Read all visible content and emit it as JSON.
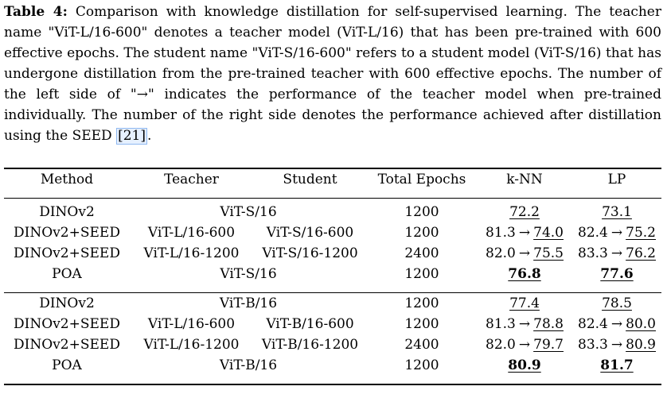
{
  "caption": {
    "label": "Table 4:",
    "text_before_cite": " Comparison with knowledge distillation for self-supervised learning. The teacher name \"ViT-L/16-600\" denotes a teacher model (ViT-L/16) that has been pre-trained with 600 effective epochs. The student name \"ViT-S/16-600\" refers to a student model (ViT-S/16) that has undergone distillation from the pre-trained teacher with 600 effective epochs. The number of the left side of \"→\" indicates the performance of the teacher model when pre-trained individually. The number of the right side denotes the performance achieved after distillation using the SEED ",
    "cite": "[21]",
    "text_after_cite": "."
  },
  "table": {
    "headers": [
      "Method",
      "Teacher",
      "Student",
      "Total Epochs",
      "k-NN",
      "LP"
    ],
    "arrow": "→",
    "group1": [
      {
        "method": "DINOv2",
        "model": "ViT-S/16",
        "epochs": "1200",
        "knn": "72.2",
        "lp": "73.1"
      },
      {
        "method": "DINOv2+SEED",
        "teacher": "ViT-L/16-600",
        "student": "ViT-S/16-600",
        "epochs": "1200",
        "knn_before": "81.3",
        "knn_after": "74.0",
        "lp_before": "82.4",
        "lp_after": "75.2"
      },
      {
        "method": "DINOv2+SEED",
        "teacher": "ViT-L/16-1200",
        "student": "ViT-S/16-1200",
        "epochs": "2400",
        "knn_before": "82.0",
        "knn_after": "75.5",
        "lp_before": "83.3",
        "lp_after": "76.2"
      },
      {
        "method": "POA",
        "model": "ViT-S/16",
        "epochs": "1200",
        "knn": "76.8",
        "lp": "77.6"
      }
    ],
    "group2": [
      {
        "method": "DINOv2",
        "model": "ViT-B/16",
        "epochs": "1200",
        "knn": "77.4",
        "lp": "78.5"
      },
      {
        "method": "DINOv2+SEED",
        "teacher": "ViT-L/16-600",
        "student": "ViT-B/16-600",
        "epochs": "1200",
        "knn_before": "81.3",
        "knn_after": "78.8",
        "lp_before": "82.4",
        "lp_after": "80.0"
      },
      {
        "method": "DINOv2+SEED",
        "teacher": "ViT-L/16-1200",
        "student": "ViT-B/16-1200",
        "epochs": "2400",
        "knn_before": "82.0",
        "knn_after": "79.7",
        "lp_before": "83.3",
        "lp_after": "80.9"
      },
      {
        "method": "POA",
        "model": "ViT-B/16",
        "epochs": "1200",
        "knn": "80.9",
        "lp": "81.7"
      }
    ]
  }
}
